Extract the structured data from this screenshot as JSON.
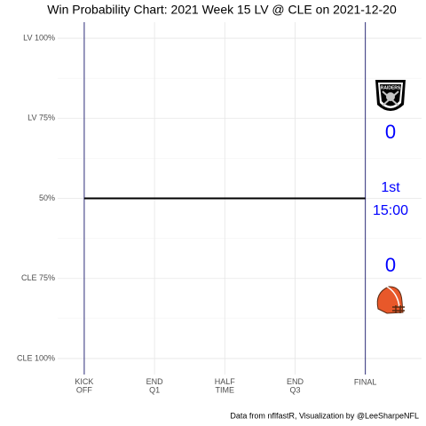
{
  "chart_data": {
    "type": "line",
    "title": "Win Probability Chart: 2021 Week 15 LV @ CLE on 2021-12-20",
    "caption": "Data from nflfastR, Visualization by @LeeSharpeNFL",
    "x": [
      0,
      3600
    ],
    "series": [
      {
        "color": "#000000",
        "values": [
          50,
          50
        ]
      }
    ],
    "xlim": [
      -340,
      4320
    ],
    "xticks": [
      {
        "value": 0,
        "label": "KICK\nOFF"
      },
      {
        "value": 900,
        "label": "END\nQ1"
      },
      {
        "value": 1800,
        "label": "HALF\nTIME"
      },
      {
        "value": 2700,
        "label": "END\nQ3"
      },
      {
        "value": 3600,
        "label": "FINAL"
      }
    ],
    "ylim": [
      -5,
      105
    ],
    "yticks": [
      {
        "value": 0,
        "label": "CLE 100%"
      },
      {
        "value": 25,
        "label": "CLE 75%"
      },
      {
        "value": 50,
        "label": "50%"
      },
      {
        "value": 75,
        "label": "LV 75%"
      },
      {
        "value": 100,
        "label": "LV 100%"
      }
    ],
    "y_minor_ticks": [
      12.5,
      37.5,
      62.5,
      87.5
    ],
    "grid": true,
    "boundary_color": "#2e2e7a",
    "annotation_color": "#0000ff",
    "away_score": 0,
    "home_score": 0,
    "quarter": "1st",
    "clock": "15:00"
  }
}
